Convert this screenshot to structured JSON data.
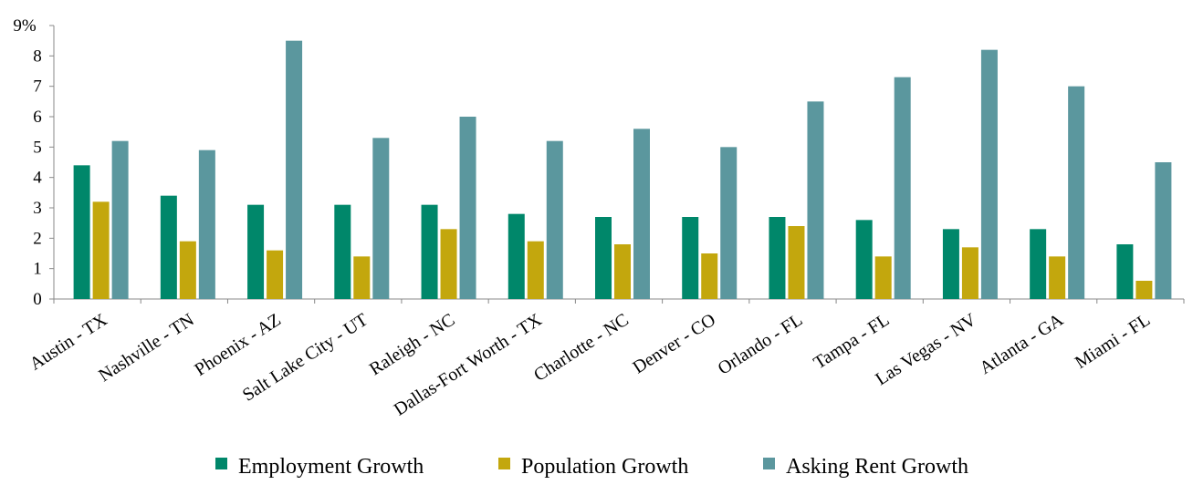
{
  "chart_data": {
    "type": "bar",
    "title": "",
    "xlabel": "",
    "ylabel": "",
    "ylim": [
      0,
      9
    ],
    "y_ticks": [
      "0",
      "1",
      "2",
      "3",
      "4",
      "5",
      "6",
      "7",
      "8",
      "9%"
    ],
    "grid": false,
    "legend_position": "bottom",
    "categories": [
      "Austin - TX",
      "Nashville - TN",
      "Phoenix - AZ",
      "Salt Lake City - UT",
      "Raleigh - NC",
      "Dallas-Fort Worth - TX",
      "Charlotte - NC",
      "Denver - CO",
      "Orlando - FL",
      "Tampa - FL",
      "Las Vegas - NV",
      "Atlanta - GA",
      "Miami - FL"
    ],
    "series": [
      {
        "name": "Employment Growth",
        "color": "#00876a",
        "values": [
          4.4,
          3.4,
          3.1,
          3.1,
          3.1,
          2.8,
          2.7,
          2.7,
          2.7,
          2.6,
          2.3,
          2.3,
          1.8
        ]
      },
      {
        "name": "Population Growth",
        "color": "#c3a70d",
        "values": [
          3.2,
          1.9,
          1.6,
          1.4,
          2.3,
          1.9,
          1.8,
          1.5,
          2.4,
          1.4,
          1.7,
          1.4,
          0.6
        ]
      },
      {
        "name": "Asking Rent Growth",
        "color": "#5b979e",
        "values": [
          5.2,
          4.9,
          8.5,
          5.3,
          6.0,
          5.2,
          5.6,
          5.0,
          6.5,
          7.3,
          8.2,
          7.0,
          4.5
        ]
      }
    ]
  }
}
